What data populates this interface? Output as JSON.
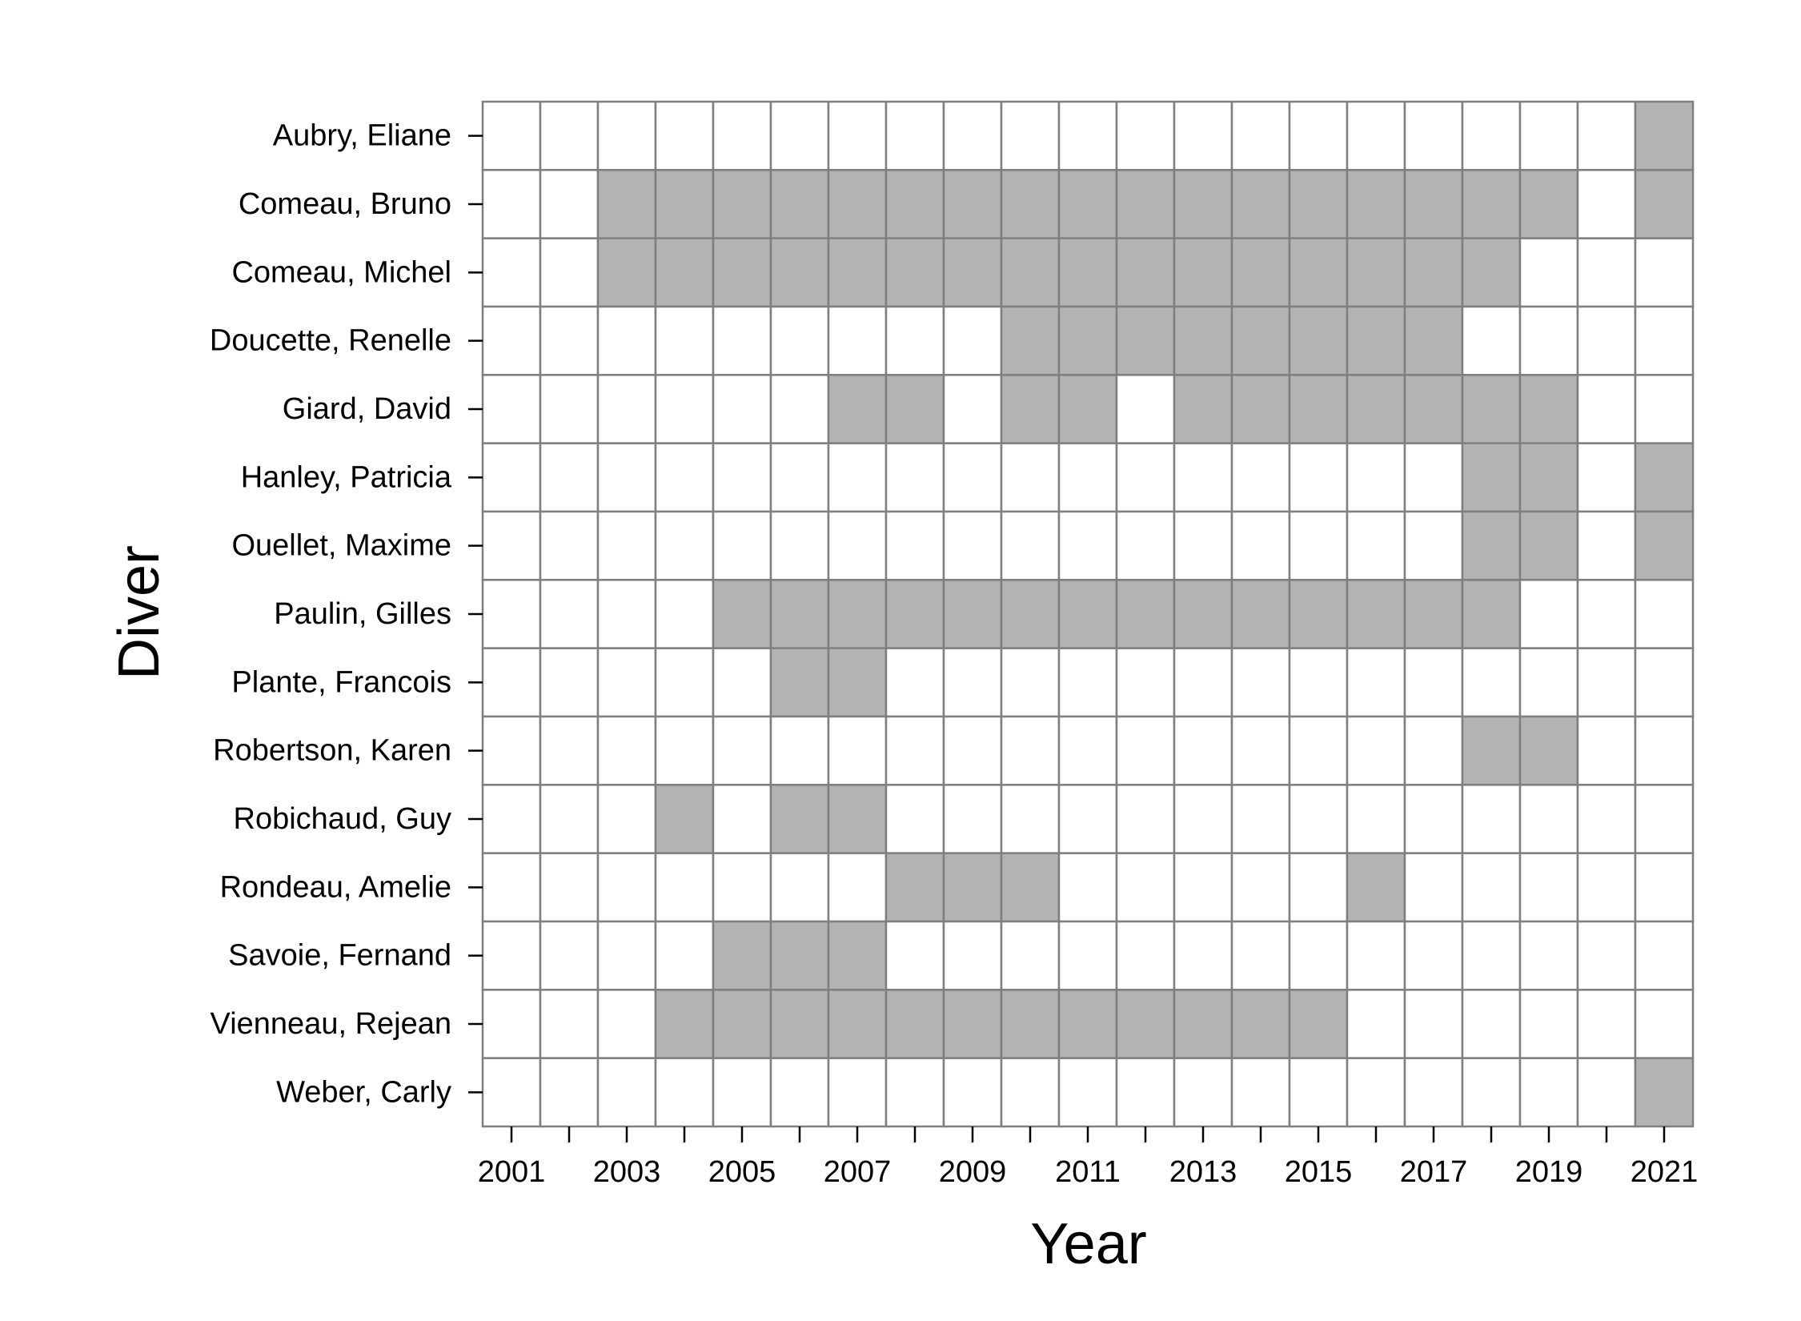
{
  "chart_data": {
    "type": "heatmap",
    "title": "",
    "xlabel": "Year",
    "ylabel": "Diver",
    "x": [
      2001,
      2002,
      2003,
      2004,
      2005,
      2006,
      2007,
      2008,
      2009,
      2010,
      2011,
      2012,
      2013,
      2014,
      2015,
      2016,
      2017,
      2018,
      2019,
      2020,
      2021
    ],
    "x_tick_labels": [
      "2001",
      "",
      "2003",
      "",
      "2005",
      "",
      "2007",
      "",
      "2009",
      "",
      "2011",
      "",
      "2013",
      "",
      "2015",
      "",
      "2017",
      "",
      "2019",
      "",
      "2021"
    ],
    "y": [
      "Aubry, Eliane",
      "Comeau, Bruno",
      "Comeau, Michel",
      "Doucette, Renelle",
      "Giard, David",
      "Hanley, Patricia",
      "Ouellet, Maxime",
      "Paulin, Gilles",
      "Plante, Francois",
      "Robertson, Karen",
      "Robichaud, Guy",
      "Rondeau, Amelie",
      "Savoie, Fernand",
      "Vienneau, Rejean",
      "Weber, Carly"
    ],
    "values": [
      [
        0,
        0,
        0,
        0,
        0,
        0,
        0,
        0,
        0,
        0,
        0,
        0,
        0,
        0,
        0,
        0,
        0,
        0,
        0,
        0,
        1
      ],
      [
        0,
        0,
        1,
        1,
        1,
        1,
        1,
        1,
        1,
        1,
        1,
        1,
        1,
        1,
        1,
        1,
        1,
        1,
        1,
        0,
        1
      ],
      [
        0,
        0,
        1,
        1,
        1,
        1,
        1,
        1,
        1,
        1,
        1,
        1,
        1,
        1,
        1,
        1,
        1,
        1,
        0,
        0,
        0
      ],
      [
        0,
        0,
        0,
        0,
        0,
        0,
        0,
        0,
        0,
        1,
        1,
        1,
        1,
        1,
        1,
        1,
        1,
        0,
        0,
        0,
        0
      ],
      [
        0,
        0,
        0,
        0,
        0,
        0,
        1,
        1,
        0,
        1,
        1,
        0,
        1,
        1,
        1,
        1,
        1,
        1,
        1,
        0,
        0
      ],
      [
        0,
        0,
        0,
        0,
        0,
        0,
        0,
        0,
        0,
        0,
        0,
        0,
        0,
        0,
        0,
        0,
        0,
        1,
        1,
        0,
        1
      ],
      [
        0,
        0,
        0,
        0,
        0,
        0,
        0,
        0,
        0,
        0,
        0,
        0,
        0,
        0,
        0,
        0,
        0,
        1,
        1,
        0,
        1
      ],
      [
        0,
        0,
        0,
        0,
        1,
        1,
        1,
        1,
        1,
        1,
        1,
        1,
        1,
        1,
        1,
        1,
        1,
        1,
        0,
        0,
        0
      ],
      [
        0,
        0,
        0,
        0,
        0,
        1,
        1,
        0,
        0,
        0,
        0,
        0,
        0,
        0,
        0,
        0,
        0,
        0,
        0,
        0,
        0
      ],
      [
        0,
        0,
        0,
        0,
        0,
        0,
        0,
        0,
        0,
        0,
        0,
        0,
        0,
        0,
        0,
        0,
        0,
        1,
        1,
        0,
        0
      ],
      [
        0,
        0,
        0,
        1,
        0,
        1,
        1,
        0,
        0,
        0,
        0,
        0,
        0,
        0,
        0,
        0,
        0,
        0,
        0,
        0,
        0
      ],
      [
        0,
        0,
        0,
        0,
        0,
        0,
        0,
        1,
        1,
        1,
        0,
        0,
        0,
        0,
        0,
        1,
        0,
        0,
        0,
        0,
        0
      ],
      [
        0,
        0,
        0,
        0,
        1,
        1,
        1,
        0,
        0,
        0,
        0,
        0,
        0,
        0,
        0,
        0,
        0,
        0,
        0,
        0,
        0
      ],
      [
        0,
        0,
        0,
        1,
        1,
        1,
        1,
        1,
        1,
        1,
        1,
        1,
        1,
        1,
        1,
        0,
        0,
        0,
        0,
        0,
        0
      ],
      [
        0,
        0,
        0,
        0,
        0,
        0,
        0,
        0,
        0,
        0,
        0,
        0,
        0,
        0,
        0,
        0,
        0,
        0,
        0,
        0,
        1
      ]
    ],
    "colors": {
      "filled": "#b3b3b3",
      "empty": "#ffffff",
      "grid": "#7f7f7f"
    },
    "grid": true,
    "legend": "none"
  }
}
